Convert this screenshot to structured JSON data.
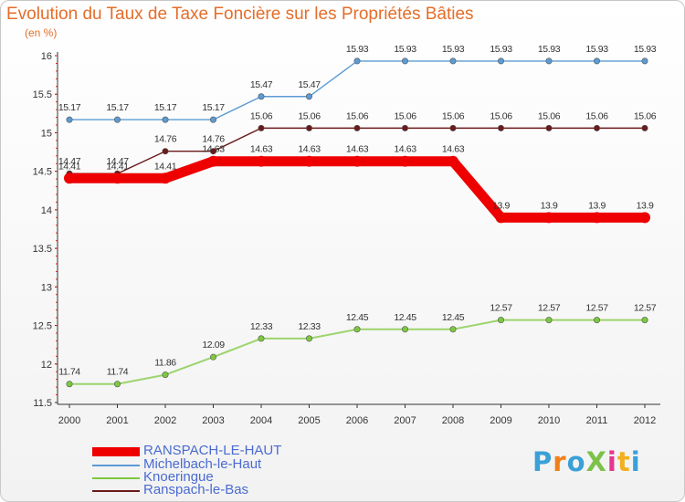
{
  "header": {
    "title": "Evolution du Taux de Taxe Foncière sur les Propriétés Bâties",
    "unit": "(en %)"
  },
  "logo": {
    "text": "ProXiti",
    "colors": [
      "#3aa0d8",
      "#f07f1a",
      "#3aa0d8",
      "#7cc24a",
      "#e8358d",
      "#f2b01e",
      "#3aa0d8"
    ]
  },
  "chart_data": {
    "type": "line",
    "title": "Evolution du Taux de Taxe Foncière sur les Propriétés Bâties",
    "ylabel": "(en %)",
    "xlabel": "",
    "ylim": [
      11.5,
      16
    ],
    "yticks": [
      11.5,
      12,
      12.5,
      13,
      13.5,
      14,
      14.5,
      15,
      15.5,
      16
    ],
    "grid": false,
    "categories": [
      "2000",
      "2001",
      "2002",
      "2003",
      "2004",
      "2005",
      "2006",
      "2007",
      "2008",
      "2009",
      "2010",
      "2011",
      "2012"
    ],
    "series": [
      {
        "name": "RANSPACH-LE-HAUT",
        "color": "#ee0000",
        "values": [
          14.41,
          14.41,
          14.41,
          14.63,
          14.63,
          14.63,
          14.63,
          14.63,
          14.63,
          13.9,
          13.9,
          13.9,
          13.9
        ]
      },
      {
        "name": "Michelbach-le-Haut",
        "color": "#5b9bd5",
        "values": [
          15.17,
          15.17,
          15.17,
          15.17,
          15.47,
          15.47,
          15.93,
          15.93,
          15.93,
          15.93,
          15.93,
          15.93,
          15.93
        ]
      },
      {
        "name": "Knoeringue",
        "color": "#7dc83f",
        "values": [
          11.74,
          11.74,
          11.86,
          12.09,
          12.33,
          12.33,
          12.45,
          12.45,
          12.45,
          12.57,
          12.57,
          12.57,
          12.57
        ]
      },
      {
        "name": "Ranspach-le-Bas",
        "color": "#6b1a1a",
        "values": [
          14.47,
          14.47,
          14.76,
          14.76,
          15.06,
          15.06,
          15.06,
          15.06,
          15.06,
          15.06,
          15.06,
          15.06,
          15.06
        ]
      }
    ]
  }
}
